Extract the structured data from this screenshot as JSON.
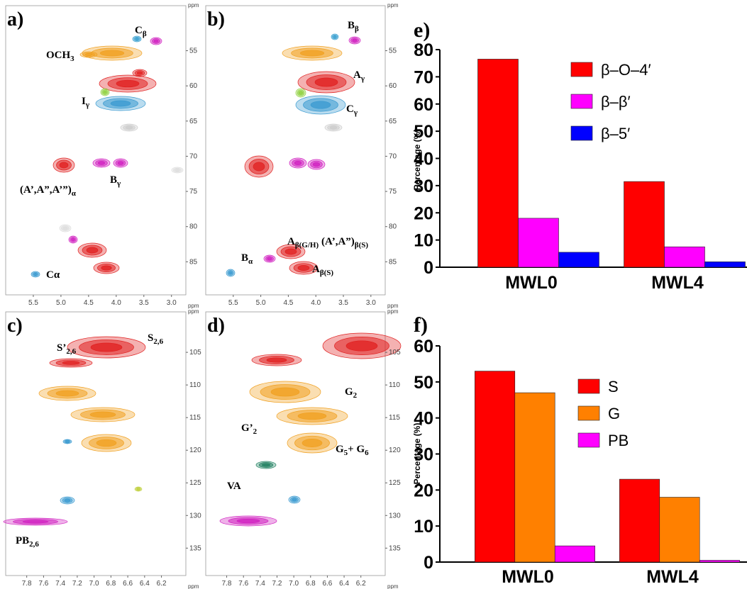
{
  "spectra": [
    {
      "panel": "a)",
      "unit": "ppm",
      "xlim": [
        6.0,
        2.74
      ],
      "ylim": [
        48.6,
        89.7
      ],
      "xticks": [
        5.5,
        {
          "value": 5,
          "label": "5.0"
        },
        4.5,
        {
          "value": 4,
          "label": "4.0"
        },
        3.5,
        {
          "value": 3,
          "label": "3.0"
        }
      ],
      "yticks": [
        55,
        60,
        65,
        70,
        75,
        80,
        85
      ],
      "labels": [
        [
          {
            "text": "C"
          },
          {
            "sub": "β"
          }
        ],
        [
          {
            "text": "OCH"
          },
          {
            "sub": "3"
          }
        ],
        [
          {
            "text": "I"
          },
          {
            "sub": "γ"
          }
        ],
        [
          {
            "text": "(A’,A”,A’”)"
          },
          {
            "sub": "α"
          }
        ],
        [
          {
            "text": "B"
          },
          {
            "sub": "γ"
          }
        ],
        [
          {
            "text": "Cα"
          }
        ]
      ]
    },
    {
      "panel": "b)",
      "unit": "ppm",
      "xlim": [
        6.0,
        2.74
      ],
      "ylim": [
        48.6,
        89.7
      ],
      "xticks": [
        5.5,
        {
          "value": 5,
          "label": "5.0"
        },
        4.5,
        {
          "value": 4,
          "label": "4.0"
        },
        3.5,
        {
          "value": 3,
          "label": "3.0"
        }
      ],
      "yticks": [
        55,
        60,
        65,
        70,
        75,
        80,
        85
      ],
      "labels": [
        [
          {
            "text": "B"
          },
          {
            "sub": "β"
          }
        ],
        [
          {
            "text": "A"
          },
          {
            "sub": "γ"
          }
        ],
        [
          {
            "text": "C"
          },
          {
            "sub": "γ"
          }
        ],
        [
          {
            "text": "A"
          },
          {
            "sub": "β(G/H)"
          }
        ],
        [
          {
            "text": "(A’,A”)"
          },
          {
            "sub": "β(S)"
          }
        ],
        [
          {
            "text": "B"
          },
          {
            "sub": "α"
          }
        ],
        [
          {
            "text": "A"
          },
          {
            "sub": "β(S)"
          }
        ]
      ]
    },
    {
      "panel": "c)",
      "unit": "ppm",
      "xlim": [
        8.05,
        5.91
      ],
      "ylim": [
        98.8,
        139.2
      ],
      "xticks": [
        7.8,
        7.6,
        7.4,
        7.2,
        {
          "value": 7,
          "label": "7.0"
        },
        6.8,
        6.6,
        6.4,
        6.2
      ],
      "yticks": [
        105,
        110,
        115,
        120,
        125,
        130,
        135
      ],
      "labels": [
        [
          {
            "text": "S’"
          },
          {
            "sub": "2,6"
          }
        ],
        [
          {
            "text": "S"
          },
          {
            "sub": "2,6"
          }
        ],
        [
          {
            "text": "PB"
          },
          {
            "sub": "2,6"
          }
        ]
      ]
    },
    {
      "panel": "d)",
      "unit": "ppm",
      "xlim": [
        8.05,
        5.91
      ],
      "ylim": [
        98.8,
        139.2
      ],
      "xticks": [
        7.8,
        7.6,
        7.4,
        7.2,
        {
          "value": 7,
          "label": "7.0"
        },
        6.8,
        6.6,
        6.4,
        6.2
      ],
      "yticks": [
        105,
        110,
        115,
        120,
        125,
        130,
        135
      ],
      "labels": [
        [
          {
            "text": "G"
          },
          {
            "sub": "2"
          }
        ],
        [
          {
            "text": "G’"
          },
          {
            "sub": "2"
          }
        ],
        [
          {
            "text": "G"
          },
          {
            "sub": "5"
          },
          {
            "text": "+ G"
          },
          {
            "sub": "6"
          }
        ],
        [
          {
            "text": "VA"
          }
        ]
      ]
    }
  ],
  "chart_data": [
    {
      "type": "bar",
      "panel": "e)",
      "y_label": "Percentage (%)",
      "categories": [
        "MWL0",
        "MWL4"
      ],
      "ylim": [
        0,
        80
      ],
      "yticks": [
        0,
        10,
        20,
        30,
        40,
        50,
        60,
        70,
        80
      ],
      "series": [
        {
          "name": "β–O–4′",
          "color": "#ff0000",
          "values": [
            76.5,
            31.5
          ]
        },
        {
          "name": "β–β′",
          "color": "#ff00ff",
          "values": [
            18,
            7.5
          ]
        },
        {
          "name": "β–5′",
          "color": "#0000ff",
          "values": [
            5.5,
            2
          ]
        }
      ]
    },
    {
      "type": "bar",
      "panel": "f)",
      "y_label": "Percentage (%)",
      "categories": [
        "MWL0",
        "MWL4"
      ],
      "ylim": [
        0,
        60
      ],
      "yticks": [
        0,
        10,
        20,
        30,
        40,
        50,
        60
      ],
      "series": [
        {
          "name": "S",
          "color": "#ff0000",
          "values": [
            53,
            23
          ]
        },
        {
          "name": "G",
          "color": "#ff8000",
          "values": [
            47,
            18
          ]
        },
        {
          "name": "PB",
          "color": "#ff00ff",
          "values": [
            4.5,
            0.5
          ]
        }
      ]
    }
  ]
}
